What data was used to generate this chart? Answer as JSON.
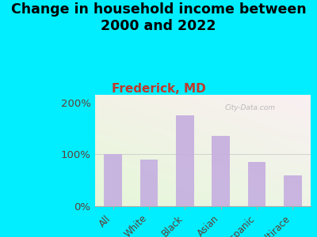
{
  "title": "Change in household income between\n2000 and 2022",
  "subtitle": "Frederick, MD",
  "categories": [
    "All",
    "White",
    "Black",
    "Asian",
    "Hispanic",
    "Multirace"
  ],
  "values": [
    100,
    90,
    175,
    135,
    85,
    60
  ],
  "bar_color": "#c5aee0",
  "background_outer": "#00eeff",
  "title_fontsize": 12.5,
  "subtitle_fontsize": 11,
  "subtitle_color": "#c0392b",
  "tick_label_color": "#5d4037",
  "ytick_label_color": "#5d4037",
  "watermark": "City-Data.com",
  "ylim": [
    0,
    215
  ],
  "yticks": [
    0,
    100,
    200
  ],
  "ytick_labels": [
    "0%",
    "100%",
    "200%"
  ]
}
